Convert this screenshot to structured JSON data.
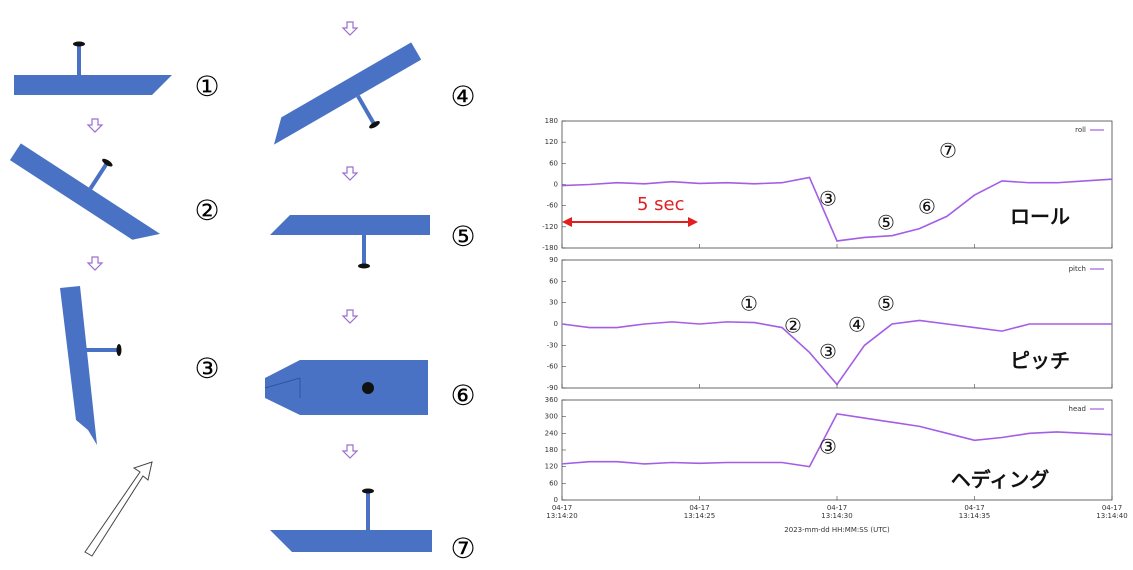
{
  "diagram": {
    "steps": [
      "①",
      "②",
      "③",
      "④",
      "⑤",
      "⑥",
      "⑦"
    ]
  },
  "chart_data": [
    {
      "type": "line",
      "x": [
        "04-17 13:14:20",
        "04-17 13:14:21",
        "04-17 13:14:22",
        "04-17 13:14:23",
        "04-17 13:14:24",
        "04-17 13:14:25",
        "04-17 13:14:26",
        "04-17 13:14:27",
        "04-17 13:14:28",
        "04-17 13:14:29",
        "04-17 13:14:30",
        "04-17 13:14:31",
        "04-17 13:14:32",
        "04-17 13:14:33",
        "04-17 13:14:34",
        "04-17 13:14:35",
        "04-17 13:14:36",
        "04-17 13:14:37",
        "04-17 13:14:38",
        "04-17 13:14:39",
        "04-17 13:14:40"
      ],
      "series": [
        {
          "name": "roll",
          "color": "#a45ee5",
          "values": [
            -3,
            0,
            5,
            2,
            8,
            3,
            5,
            2,
            5,
            20,
            -160,
            -150,
            -145,
            -125,
            -90,
            -30,
            10,
            5,
            5,
            10,
            15
          ]
        }
      ],
      "xlim": [
        "04-17 13:14:20",
        "04-17 13:14:40"
      ],
      "ylim": [
        -180,
        180
      ],
      "yticks": [
        -180,
        -120,
        -60,
        0,
        60,
        120,
        180
      ],
      "annotations": [
        "5 sec",
        "③",
        "⑤",
        "⑥",
        "⑦",
        "ロール"
      ]
    },
    {
      "type": "line",
      "x": [
        "04-17 13:14:20",
        "04-17 13:14:21",
        "04-17 13:14:22",
        "04-17 13:14:23",
        "04-17 13:14:24",
        "04-17 13:14:25",
        "04-17 13:14:26",
        "04-17 13:14:27",
        "04-17 13:14:28",
        "04-17 13:14:29",
        "04-17 13:14:30",
        "04-17 13:14:31",
        "04-17 13:14:32",
        "04-17 13:14:33",
        "04-17 13:14:34",
        "04-17 13:14:35",
        "04-17 13:14:36",
        "04-17 13:14:37",
        "04-17 13:14:38",
        "04-17 13:14:39",
        "04-17 13:14:40"
      ],
      "series": [
        {
          "name": "pitch",
          "color": "#a45ee5",
          "values": [
            0,
            -5,
            -5,
            0,
            3,
            0,
            3,
            2,
            -5,
            -40,
            -85,
            -30,
            0,
            5,
            0,
            -5,
            -10,
            0,
            0,
            0,
            0
          ]
        }
      ],
      "xlim": [
        "04-17 13:14:20",
        "04-17 13:14:40"
      ],
      "ylim": [
        -90,
        90
      ],
      "yticks": [
        -90,
        -60,
        -30,
        0,
        30,
        60,
        90
      ],
      "annotations": [
        "①",
        "②",
        "③",
        "④",
        "⑤",
        "ピッチ"
      ]
    },
    {
      "type": "line",
      "x": [
        "04-17 13:14:20",
        "04-17 13:14:21",
        "04-17 13:14:22",
        "04-17 13:14:23",
        "04-17 13:14:24",
        "04-17 13:14:25",
        "04-17 13:14:26",
        "04-17 13:14:27",
        "04-17 13:14:28",
        "04-17 13:14:29",
        "04-17 13:14:30",
        "04-17 13:14:31",
        "04-17 13:14:32",
        "04-17 13:14:33",
        "04-17 13:14:34",
        "04-17 13:14:35",
        "04-17 13:14:36",
        "04-17 13:14:37",
        "04-17 13:14:38",
        "04-17 13:14:39",
        "04-17 13:14:40"
      ],
      "series": [
        {
          "name": "head",
          "color": "#a45ee5",
          "values": [
            130,
            138,
            138,
            130,
            135,
            132,
            135,
            135,
            135,
            120,
            310,
            295,
            280,
            265,
            240,
            215,
            225,
            240,
            245,
            240,
            235
          ]
        }
      ],
      "xlim": [
        "04-17 13:14:20",
        "04-17 13:14:40"
      ],
      "ylim": [
        0,
        360
      ],
      "yticks": [
        0,
        60,
        120,
        180,
        240,
        300,
        360
      ],
      "xticks": [
        {
          "value": "04-17 13:14:20",
          "label": [
            "04-17",
            "13:14:20"
          ]
        },
        {
          "value": "04-17 13:14:25",
          "label": [
            "04-17",
            "13:14:25"
          ]
        },
        {
          "value": "04-17 13:14:30",
          "label": [
            "04-17",
            "13:14:30"
          ]
        },
        {
          "value": "04-17 13:14:35",
          "label": [
            "04-17",
            "13:14:35"
          ]
        },
        {
          "value": "04-17 13:14:40",
          "label": [
            "04-17",
            "13:14:40"
          ]
        }
      ],
      "xlabel": "2023-mm-dd HH:MM:SS (UTC)",
      "annotations": [
        "③",
        "ヘディング"
      ]
    }
  ]
}
